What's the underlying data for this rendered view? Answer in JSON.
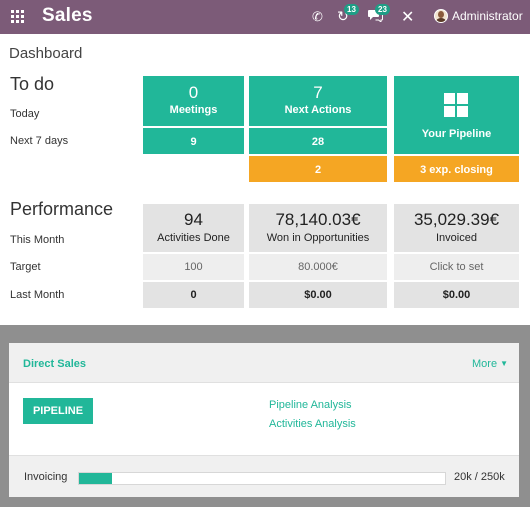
{
  "app": {
    "title": "Sales",
    "user": "Administrator"
  },
  "topbar": {
    "icons": [
      "apps-icon",
      "phone-icon",
      "activity-icon",
      "chat-icon",
      "close-icon"
    ],
    "activity_badge": "13",
    "chat_badge": "23"
  },
  "breadcrumb": "Dashboard",
  "todo": {
    "title": "To do",
    "rows": [
      "Today",
      "Next 7 days"
    ],
    "meetings": {
      "value": "0",
      "label": "Meetings",
      "next7": "9"
    },
    "next_actions": {
      "value": "7",
      "label": "Next Actions",
      "next7": "28",
      "overdue": "2"
    },
    "pipeline": {
      "label": "Your Pipeline",
      "closing": "3 exp. closing",
      "icon": "pipeline-grid-icon"
    }
  },
  "performance": {
    "title": "Performance",
    "rows": [
      "This Month",
      "Target",
      "Last Month"
    ],
    "activities": {
      "value": "94",
      "label": "Activities Done",
      "target": "100",
      "last_month": "0"
    },
    "opportunities": {
      "value": "78,140.03€",
      "label": "Won in Opportunities",
      "target": "80.000€",
      "last_month": "$0.00"
    },
    "invoiced": {
      "value": "35,029.39€",
      "label": "Invoiced",
      "target": "Click to set",
      "last_month": "$0.00"
    }
  },
  "card": {
    "title": "Direct Sales",
    "more": "More",
    "button": "PIPELINE",
    "links": [
      "Pipeline Analysis",
      "Activities Analysis"
    ],
    "footer_label": "Invoicing",
    "progress_fraction": 0.09,
    "footer_value": "20k / 250k"
  },
  "colors": {
    "topbar": "#7c5b78",
    "accent": "#21b799",
    "warning": "#f5a623",
    "tile_grey": "#e3e3e3"
  }
}
